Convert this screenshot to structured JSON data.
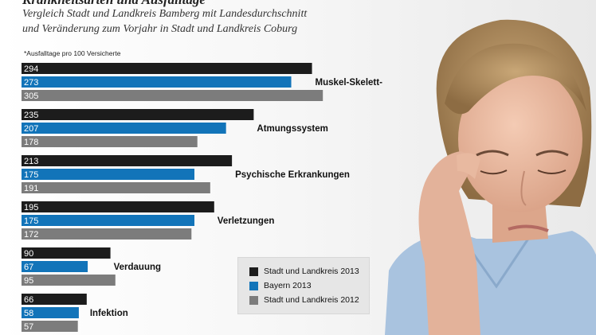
{
  "header": {
    "title_partial": "Krankheitsarten und Ausfalltage",
    "subtitle_line1": "Vergleich Stadt und Landkreis Bamberg mit Landesdurchschnitt",
    "subtitle_line2": "und Veränderung zum Vorjahr in Stadt und Landkreis Coburg",
    "note": "*Ausfalltage pro 100 Versicherte"
  },
  "colors": {
    "series1": "#1c1c1c",
    "series2": "#1274b9",
    "series3": "#7c7c7c"
  },
  "chart_data": {
    "type": "bar",
    "orientation": "horizontal",
    "categories": [
      "Muskel-Skelett-System",
      "Atmungssystem",
      "Psychische Erkrankungen",
      "Verletzungen",
      "Verdauung",
      "Infektion"
    ],
    "series": [
      {
        "name": "Stadt und Landkreis 2013",
        "values": [
          294,
          235,
          213,
          195,
          90,
          66
        ]
      },
      {
        "name": "Bayern 2013",
        "values": [
          273,
          207,
          175,
          175,
          67,
          58
        ]
      },
      {
        "name": "Stadt und Landkreis 2012",
        "values": [
          305,
          178,
          191,
          172,
          95,
          57
        ]
      }
    ]
  },
  "legend": {
    "placement": "bottom-center"
  },
  "photo": {
    "subject": "woman-with-headache-photo"
  }
}
